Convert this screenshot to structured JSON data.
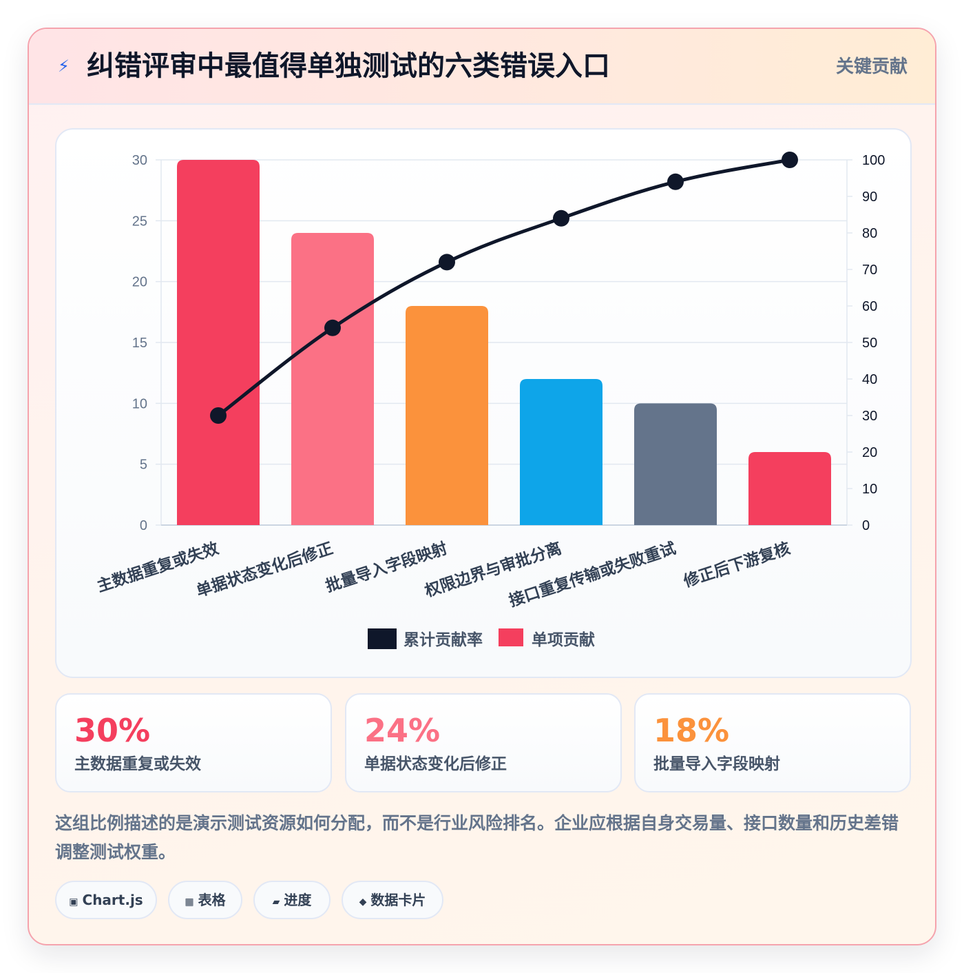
{
  "header": {
    "icon": "lightning-icon",
    "title": "纠错评审中最值得单独测试的六类错误入口",
    "badge": "关键贡献"
  },
  "chart_data": {
    "type": "bar",
    "categories": [
      "主数据重复或失效",
      "单据状态变化后修正",
      "批量导入字段映射",
      "权限边界与审批分离",
      "接口重复传输或失败重试",
      "修正后下游复核"
    ],
    "series": [
      {
        "name": "单项贡献",
        "type": "bar",
        "axis": "left",
        "values": [
          30,
          24,
          18,
          12,
          10,
          6
        ],
        "colors": [
          "#f43f5e",
          "#fb7185",
          "#fb923c",
          "#0ea5e9",
          "#64748b",
          "#f43f5e"
        ]
      },
      {
        "name": "累计贡献率",
        "type": "line",
        "axis": "right",
        "values": [
          30,
          54,
          72,
          84,
          94,
          100
        ],
        "color": "#0f172a"
      }
    ],
    "ylim_left": [
      0,
      30
    ],
    "yticks_left": [
      0,
      5,
      10,
      15,
      20,
      25,
      30
    ],
    "ylim_right": [
      0,
      100
    ],
    "yticks_right": [
      0,
      10,
      20,
      30,
      40,
      50,
      60,
      70,
      80,
      90,
      100
    ],
    "legend": [
      "累计贡献率",
      "单项贡献"
    ],
    "legend_position": "bottom",
    "grid": true
  },
  "stats": [
    {
      "value": "30%",
      "label": "主数据重复或失效",
      "color": "#f43f5e"
    },
    {
      "value": "24%",
      "label": "单据状态变化后修正",
      "color": "#fb7185"
    },
    {
      "value": "18%",
      "label": "批量导入字段映射",
      "color": "#fb923c"
    }
  ],
  "note": "这组比例描述的是演示测试资源如何分配，而不是行业风险排名。企业应根据自身交易量、接口数量和历史差错调整测试权重。",
  "chips": [
    {
      "icon": "▣",
      "icon_name": "chart-icon",
      "label": "Chart.js"
    },
    {
      "icon": "▦",
      "icon_name": "table-icon",
      "label": "表格"
    },
    {
      "icon": "▰",
      "icon_name": "progress-icon",
      "label": "进度"
    },
    {
      "icon": "◆",
      "icon_name": "data-card-icon",
      "label": "数据卡片"
    }
  ]
}
